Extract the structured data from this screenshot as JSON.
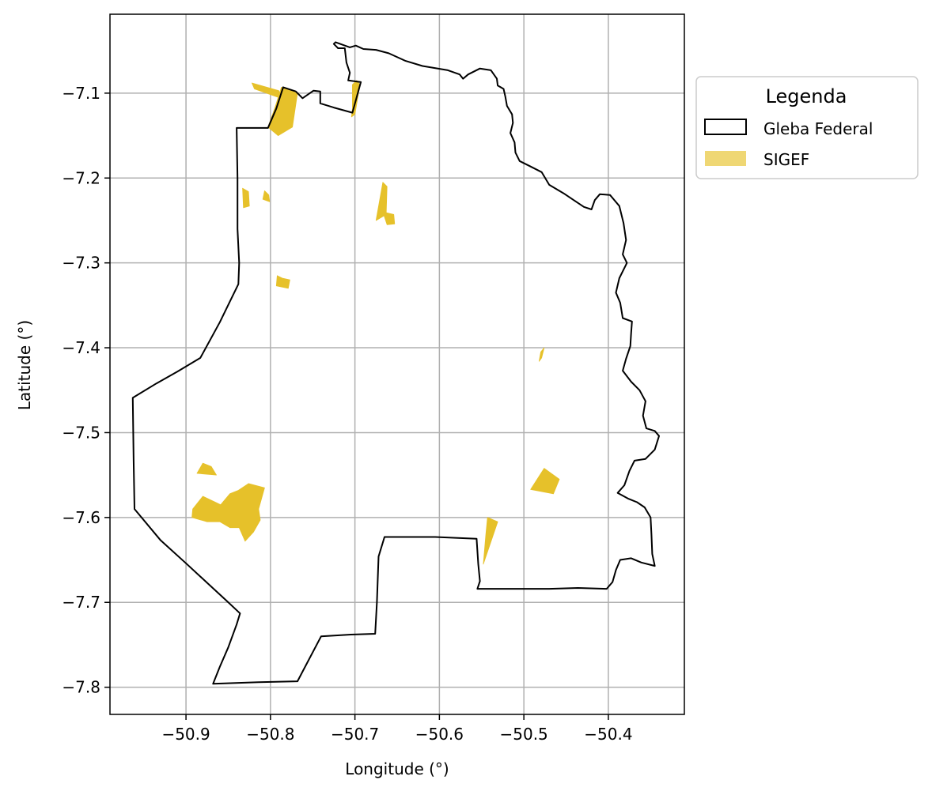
{
  "chart_data": {
    "type": "map",
    "xlabel": "Longitude (°)",
    "ylabel": "Latitude (°)",
    "xlim": [
      -50.99,
      -50.31
    ],
    "ylim": [
      -7.832,
      -7.007
    ],
    "x_ticks": [
      -50.9,
      -50.8,
      -50.7,
      -50.6,
      -50.5,
      -50.4
    ],
    "x_tick_labels": [
      "−50.9",
      "−50.8",
      "−50.7",
      "−50.6",
      "−50.5",
      "−50.4"
    ],
    "y_ticks": [
      -7.1,
      -7.2,
      -7.3,
      -7.4,
      -7.5,
      -7.6,
      -7.7,
      -7.8
    ],
    "y_tick_labels": [
      "−7.1",
      "−7.2",
      "−7.3",
      "−7.4",
      "−7.5",
      "−7.6",
      "−7.7",
      "−7.8"
    ],
    "grid": true,
    "legend": {
      "title": "Legenda",
      "placement": "outside-upper-right",
      "entries": [
        {
          "label": "Gleba Federal",
          "style": "outline",
          "edge_color": "#000000",
          "fill": "none"
        },
        {
          "label": "SIGEF",
          "style": "fill",
          "fill": "#e6c12a",
          "opacity": 0.65
        }
      ]
    },
    "layers": [
      {
        "name": "Gleba Federal",
        "style": "outline",
        "edge_color": "#000000",
        "polygon": [
          [
            -50.723,
            -7.04
          ],
          [
            -50.706,
            -7.046
          ],
          [
            -50.699,
            -7.044
          ],
          [
            -50.69,
            -7.048
          ],
          [
            -50.675,
            -7.049
          ],
          [
            -50.66,
            -7.053
          ],
          [
            -50.64,
            -7.062
          ],
          [
            -50.62,
            -7.068
          ],
          [
            -50.59,
            -7.073
          ],
          [
            -50.576,
            -7.078
          ],
          [
            -50.572,
            -7.083
          ],
          [
            -50.566,
            -7.078
          ],
          [
            -50.552,
            -7.071
          ],
          [
            -50.539,
            -7.073
          ],
          [
            -50.532,
            -7.083
          ],
          [
            -50.531,
            -7.091
          ],
          [
            -50.524,
            -7.095
          ],
          [
            -50.522,
            -7.104
          ],
          [
            -50.52,
            -7.115
          ],
          [
            -50.514,
            -7.125
          ],
          [
            -50.513,
            -7.135
          ],
          [
            -50.516,
            -7.147
          ],
          [
            -50.511,
            -7.158
          ],
          [
            -50.51,
            -7.17
          ],
          [
            -50.505,
            -7.18
          ],
          [
            -50.493,
            -7.186
          ],
          [
            -50.479,
            -7.193
          ],
          [
            -50.47,
            -7.208
          ],
          [
            -50.453,
            -7.218
          ],
          [
            -50.441,
            -7.226
          ],
          [
            -50.429,
            -7.234
          ],
          [
            -50.42,
            -7.237
          ],
          [
            -50.416,
            -7.226
          ],
          [
            -50.41,
            -7.219
          ],
          [
            -50.398,
            -7.22
          ],
          [
            -50.387,
            -7.233
          ],
          [
            -50.382,
            -7.253
          ],
          [
            -50.379,
            -7.273
          ],
          [
            -50.383,
            -7.29
          ],
          [
            -50.378,
            -7.3
          ],
          [
            -50.387,
            -7.318
          ],
          [
            -50.391,
            -7.335
          ],
          [
            -50.386,
            -7.347
          ],
          [
            -50.383,
            -7.365
          ],
          [
            -50.372,
            -7.369
          ],
          [
            -50.373,
            -7.383
          ],
          [
            -50.374,
            -7.398
          ],
          [
            -50.379,
            -7.413
          ],
          [
            -50.383,
            -7.427
          ],
          [
            -50.373,
            -7.44
          ],
          [
            -50.363,
            -7.45
          ],
          [
            -50.356,
            -7.463
          ],
          [
            -50.359,
            -7.48
          ],
          [
            -50.355,
            -7.495
          ],
          [
            -50.345,
            -7.498
          ],
          [
            -50.34,
            -7.504
          ],
          [
            -50.345,
            -7.52
          ],
          [
            -50.356,
            -7.531
          ],
          [
            -50.369,
            -7.533
          ],
          [
            -50.375,
            -7.545
          ],
          [
            -50.381,
            -7.562
          ],
          [
            -50.389,
            -7.571
          ],
          [
            -50.376,
            -7.578
          ],
          [
            -50.366,
            -7.582
          ],
          [
            -50.357,
            -7.588
          ],
          [
            -50.35,
            -7.6
          ],
          [
            -50.349,
            -7.62
          ],
          [
            -50.348,
            -7.643
          ],
          [
            -50.345,
            -7.657
          ],
          [
            -50.361,
            -7.653
          ],
          [
            -50.373,
            -7.648
          ],
          [
            -50.386,
            -7.65
          ],
          [
            -50.391,
            -7.662
          ],
          [
            -50.395,
            -7.676
          ],
          [
            -50.402,
            -7.684
          ],
          [
            -50.436,
            -7.683
          ],
          [
            -50.47,
            -7.684
          ],
          [
            -50.52,
            -7.684
          ],
          [
            -50.555,
            -7.684
          ],
          [
            -50.552,
            -7.675
          ],
          [
            -50.554,
            -7.655
          ],
          [
            -50.556,
            -7.625
          ],
          [
            -50.605,
            -7.623
          ],
          [
            -50.665,
            -7.623
          ],
          [
            -50.672,
            -7.646
          ],
          [
            -50.674,
            -7.7
          ],
          [
            -50.676,
            -7.737
          ],
          [
            -50.705,
            -7.738
          ],
          [
            -50.74,
            -7.74
          ],
          [
            -50.768,
            -7.793
          ],
          [
            -50.814,
            -7.794
          ],
          [
            -50.868,
            -7.796
          ],
          [
            -50.86,
            -7.776
          ],
          [
            -50.85,
            -7.753
          ],
          [
            -50.84,
            -7.726
          ],
          [
            -50.836,
            -7.713
          ],
          [
            -50.852,
            -7.698
          ],
          [
            -50.875,
            -7.677
          ],
          [
            -50.9,
            -7.654
          ],
          [
            -50.93,
            -7.627
          ],
          [
            -50.961,
            -7.59
          ],
          [
            -50.962,
            -7.533
          ],
          [
            -50.963,
            -7.459
          ],
          [
            -50.935,
            -7.442
          ],
          [
            -50.91,
            -7.428
          ],
          [
            -50.883,
            -7.412
          ],
          [
            -50.86,
            -7.37
          ],
          [
            -50.838,
            -7.325
          ],
          [
            -50.837,
            -7.3
          ],
          [
            -50.839,
            -7.26
          ],
          [
            -50.839,
            -7.2
          ],
          [
            -50.84,
            -7.141
          ],
          [
            -50.825,
            -7.141
          ],
          [
            -50.803,
            -7.141
          ],
          [
            -50.793,
            -7.118
          ],
          [
            -50.785,
            -7.093
          ],
          [
            -50.77,
            -7.098
          ],
          [
            -50.762,
            -7.106
          ],
          [
            -50.749,
            -7.097
          ],
          [
            -50.741,
            -7.098
          ],
          [
            -50.741,
            -7.112
          ],
          [
            -50.725,
            -7.117
          ],
          [
            -50.703,
            -7.123
          ],
          [
            -50.693,
            -7.087
          ],
          [
            -50.708,
            -7.085
          ],
          [
            -50.706,
            -7.076
          ],
          [
            -50.71,
            -7.064
          ],
          [
            -50.712,
            -7.047
          ],
          [
            -50.72,
            -7.047
          ],
          [
            -50.725,
            -7.042
          ],
          [
            -50.723,
            -7.04
          ]
        ]
      },
      {
        "name": "SIGEF",
        "style": "fill",
        "fill": "#e6c12a",
        "polygons": [
          [
            [
              -50.787,
              -7.093
            ],
            [
              -50.768,
              -7.1
            ],
            [
              -50.774,
              -7.14
            ],
            [
              -50.791,
              -7.15
            ],
            [
              -50.803,
              -7.14
            ],
            [
              -50.795,
              -7.118
            ]
          ],
          [
            [
              -50.822,
              -7.088
            ],
            [
              -50.79,
              -7.097
            ],
            [
              -50.788,
              -7.106
            ],
            [
              -50.819,
              -7.095
            ]
          ],
          [
            [
              -50.704,
              -7.128
            ],
            [
              -50.7,
              -7.125
            ],
            [
              -50.694,
              -7.09
            ],
            [
              -50.698,
              -7.085
            ],
            [
              -50.703,
              -7.09
            ],
            [
              -50.703,
              -7.118
            ]
          ],
          [
            [
              -50.833,
              -7.212
            ],
            [
              -50.826,
              -7.216
            ],
            [
              -50.825,
              -7.233
            ],
            [
              -50.832,
              -7.235
            ]
          ],
          [
            [
              -50.807,
              -7.215
            ],
            [
              -50.802,
              -7.22
            ],
            [
              -50.801,
              -7.228
            ],
            [
              -50.809,
              -7.225
            ]
          ],
          [
            [
              -50.667,
              -7.205
            ],
            [
              -50.662,
              -7.21
            ],
            [
              -50.663,
              -7.243
            ],
            [
              -50.675,
              -7.25
            ]
          ],
          [
            [
              -50.667,
              -7.24
            ],
            [
              -50.662,
              -7.255
            ],
            [
              -50.653,
              -7.254
            ],
            [
              -50.654,
              -7.243
            ]
          ],
          [
            [
              -50.792,
              -7.315
            ],
            [
              -50.786,
              -7.318
            ],
            [
              -50.777,
              -7.32
            ],
            [
              -50.779,
              -7.33
            ],
            [
              -50.793,
              -7.327
            ]
          ],
          [
            [
              -50.48,
              -7.405
            ],
            [
              -50.476,
              -7.4
            ],
            [
              -50.479,
              -7.412
            ],
            [
              -50.482,
              -7.416
            ]
          ],
          [
            [
              -50.476,
              -7.542
            ],
            [
              -50.458,
              -7.555
            ],
            [
              -50.465,
              -7.572
            ],
            [
              -50.492,
              -7.567
            ]
          ],
          [
            [
              -50.543,
              -7.6
            ],
            [
              -50.531,
              -7.605
            ],
            [
              -50.548,
              -7.655
            ],
            [
              -50.545,
              -7.62
            ]
          ],
          [
            [
              -50.88,
              -7.536
            ],
            [
              -50.87,
              -7.54
            ],
            [
              -50.864,
              -7.55
            ],
            [
              -50.887,
              -7.548
            ]
          ],
          [
            [
              -50.88,
              -7.575
            ],
            [
              -50.859,
              -7.585
            ],
            [
              -50.848,
              -7.572
            ],
            [
              -50.838,
              -7.568
            ],
            [
              -50.826,
              -7.56
            ],
            [
              -50.807,
              -7.565
            ],
            [
              -50.814,
              -7.59
            ],
            [
              -50.812,
              -7.603
            ],
            [
              -50.82,
              -7.617
            ],
            [
              -50.83,
              -7.628
            ],
            [
              -50.837,
              -7.612
            ],
            [
              -50.848,
              -7.612
            ],
            [
              -50.86,
              -7.605
            ],
            [
              -50.875,
              -7.605
            ],
            [
              -50.893,
              -7.6
            ],
            [
              -50.892,
              -7.59
            ]
          ]
        ]
      }
    ]
  }
}
